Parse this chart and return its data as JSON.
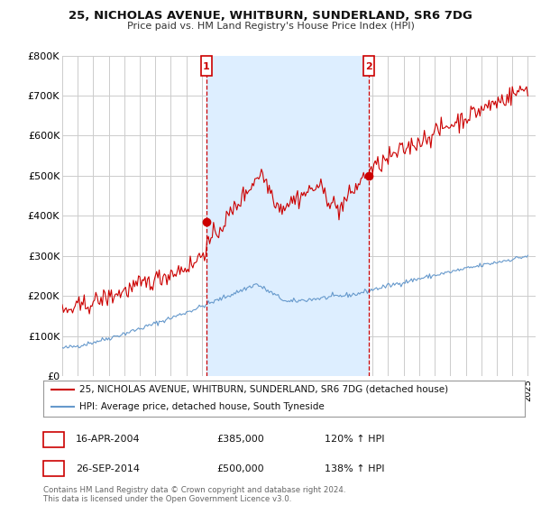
{
  "title": "25, NICHOLAS AVENUE, WHITBURN, SUNDERLAND, SR6 7DG",
  "subtitle": "Price paid vs. HM Land Registry's House Price Index (HPI)",
  "ylabel_ticks": [
    "£0",
    "£100K",
    "£200K",
    "£300K",
    "£400K",
    "£500K",
    "£600K",
    "£700K",
    "£800K"
  ],
  "ylim": [
    0,
    800000
  ],
  "xlim_start": 1995.0,
  "xlim_end": 2025.5,
  "line1_color": "#cc0000",
  "line2_color": "#6699cc",
  "marker_color": "#cc0000",
  "sale1_x": 2004.29,
  "sale1_y": 385000,
  "sale1_label": "1",
  "sale2_x": 2014.73,
  "sale2_y": 500000,
  "sale2_label": "2",
  "shade_color": "#ddeeff",
  "legend_line1": "25, NICHOLAS AVENUE, WHITBURN, SUNDERLAND, SR6 7DG (detached house)",
  "legend_line2": "HPI: Average price, detached house, South Tyneside",
  "ann1_num": "1",
  "ann1_date": "16-APR-2004",
  "ann1_price": "£385,000",
  "ann1_hpi": "120% ↑ HPI",
  "ann2_num": "2",
  "ann2_date": "26-SEP-2014",
  "ann2_price": "£500,000",
  "ann2_hpi": "138% ↑ HPI",
  "footer": "Contains HM Land Registry data © Crown copyright and database right 2024.\nThis data is licensed under the Open Government Licence v3.0.",
  "bg_color": "#ffffff",
  "plot_bg_color": "#ffffff",
  "grid_color": "#cccccc"
}
